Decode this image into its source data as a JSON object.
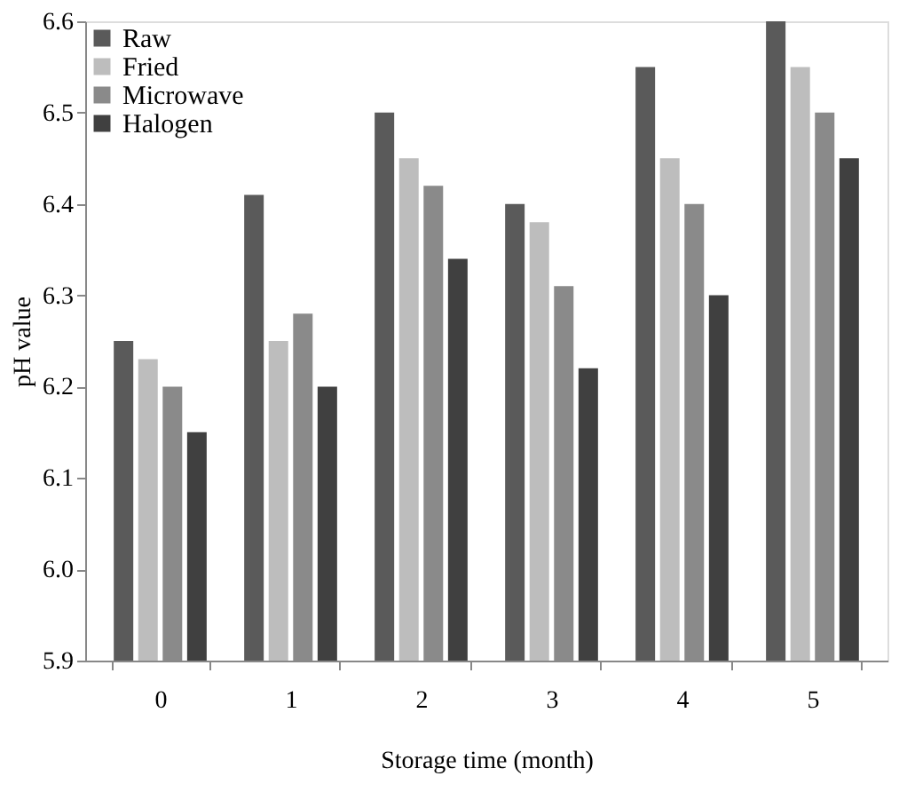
{
  "chart_data": {
    "type": "bar",
    "xlabel": "Storage time (month)",
    "ylabel": "pH value",
    "categories": [
      "0",
      "1",
      "2",
      "3",
      "4",
      "5"
    ],
    "series": [
      {
        "name": "Raw",
        "color": "#5a5a5a",
        "values": [
          6.25,
          6.41,
          6.5,
          6.4,
          6.55,
          6.6
        ]
      },
      {
        "name": "Fried",
        "color": "#bdbdbd",
        "values": [
          6.23,
          6.25,
          6.45,
          6.38,
          6.45,
          6.55
        ]
      },
      {
        "name": "Microwave",
        "color": "#8a8a8a",
        "values": [
          6.2,
          6.28,
          6.42,
          6.31,
          6.4,
          6.5
        ]
      },
      {
        "name": "Halogen",
        "color": "#404040",
        "values": [
          6.15,
          6.2,
          6.34,
          6.22,
          6.3,
          6.45
        ]
      }
    ],
    "ylim": [
      5.9,
      6.6
    ],
    "yticks": [
      5.9,
      {
        "value": 6,
        "label": "6.0"
      },
      6.1,
      6.2,
      6.3,
      6.4,
      6.5,
      6.6
    ],
    "grid": false,
    "legend": "top left"
  }
}
